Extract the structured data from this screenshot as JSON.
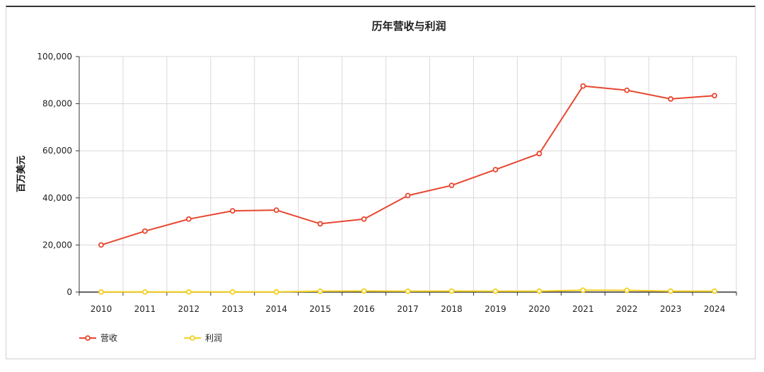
{
  "chart_data": {
    "type": "line",
    "title": "历年营收与利润",
    "xlabel": "",
    "ylabel": "百万美元",
    "categories": [
      "2010",
      "2011",
      "2012",
      "2013",
      "2014",
      "2015",
      "2016",
      "2017",
      "2018",
      "2019",
      "2020",
      "2021",
      "2022",
      "2023",
      "2024"
    ],
    "ylim": [
      0,
      100000
    ],
    "yticks": [
      "0",
      "20,000",
      "40,000",
      "60,000",
      "80,000",
      "100,000"
    ],
    "grid": true,
    "legend_position": "bottom-left",
    "series": [
      {
        "name": "营收",
        "color": "#e8462f",
        "values": [
          20000,
          25900,
          31000,
          34500,
          34800,
          29000,
          31000,
          41000,
          45300,
          52000,
          58800,
          87500,
          85700,
          82000,
          83400
        ]
      },
      {
        "name": "利润",
        "color": "#f5d020",
        "values": [
          50,
          80,
          60,
          60,
          90,
          350,
          450,
          380,
          420,
          380,
          400,
          800,
          750,
          400,
          400
        ]
      }
    ]
  }
}
